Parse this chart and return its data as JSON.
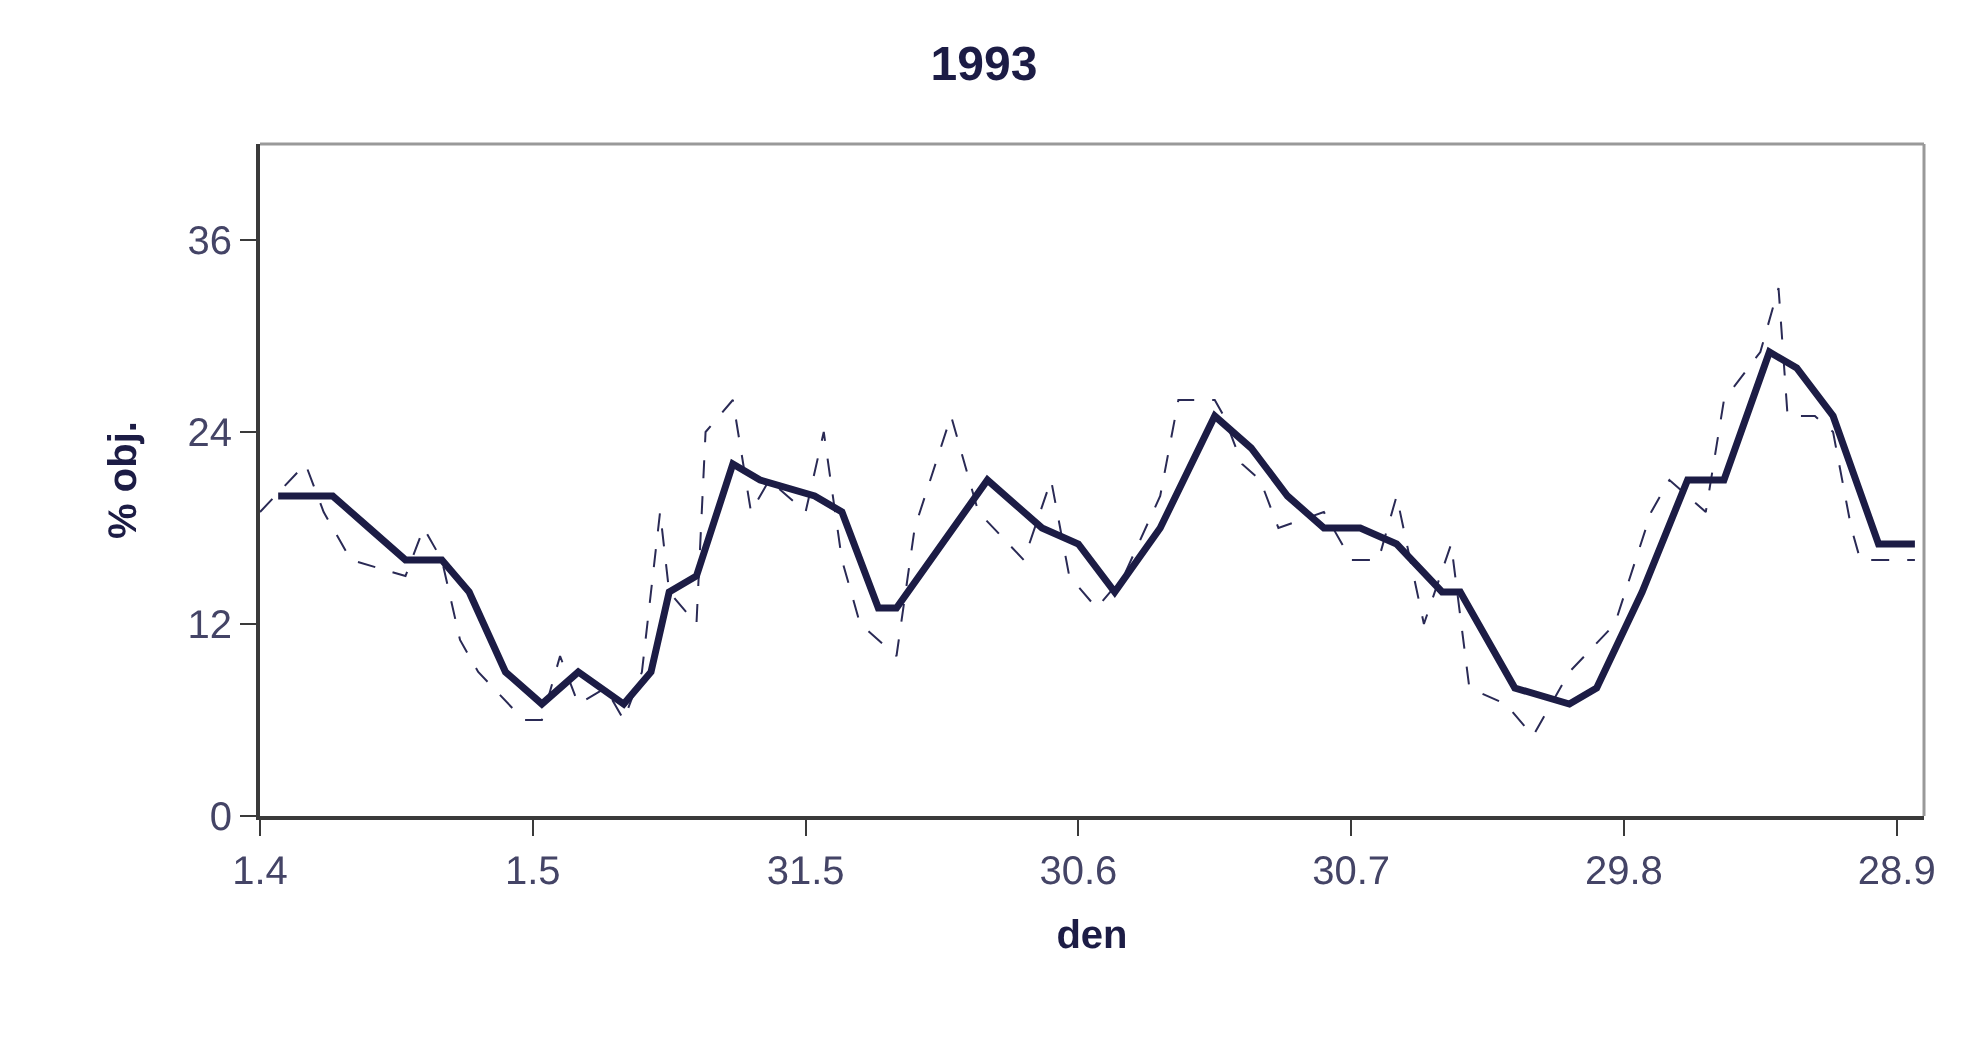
{
  "chart_data": {
    "type": "line",
    "title": "1993",
    "xlabel": "den",
    "ylabel": "% obj.",
    "xlim": [
      "--04-01",
      "--10-01"
    ],
    "xticks": [
      {
        "value": "--04-01",
        "label": "1.4"
      },
      {
        "value": "--05-01",
        "label": "1.5"
      },
      {
        "value": "--05-31",
        "label": "31.5"
      },
      {
        "value": "--06-30",
        "label": "30.6"
      },
      {
        "value": "--07-30",
        "label": "30.7"
      },
      {
        "value": "--08-29",
        "label": "29.8"
      },
      {
        "value": "--09-28",
        "label": "28.9"
      }
    ],
    "ylim": [
      0,
      42
    ],
    "yticks": [
      0,
      12,
      24,
      36
    ],
    "marker": "none",
    "series": [
      {
        "color": "#2a2a55",
        "line_style": "dashed",
        "x": [
          "--04-01",
          "--04-06",
          "--04-08",
          "--04-11",
          "--04-17",
          "--04-19",
          "--04-21",
          "--04-23",
          "--04-25",
          "--04-30",
          "--05-02",
          "--05-04",
          "--05-06",
          "--05-09",
          "--05-11",
          "--05-13",
          "--05-15",
          "--05-16",
          "--05-19",
          "--05-20",
          "--05-23",
          "--05-25",
          "--05-27",
          "--05-31",
          "--06-02",
          "--06-04",
          "--06-06",
          "--06-10",
          "--06-12",
          "--06-16",
          "--06-19",
          "--06-24",
          "--06-27",
          "--06-29",
          "--07-02",
          "--07-05",
          "--07-09",
          "--07-11",
          "--07-15",
          "--07-16",
          "--07-18",
          "--07-20",
          "--07-22",
          "--07-27",
          "--07-30",
          "--08-02",
          "--08-04",
          "--08-07",
          "--08-10",
          "--08-12",
          "--08-16",
          "--08-19",
          "--08-23",
          "--08-28",
          "--09-01",
          "--09-03",
          "--09-07",
          "--09-09",
          "--09-13",
          "--09-15",
          "--09-16",
          "--09-19",
          "--09-21",
          "--09-23",
          "--09-24",
          "--09-27",
          "--09-30"
        ],
        "values": [
          19,
          22,
          19,
          16,
          15,
          18,
          16,
          11,
          9,
          6,
          6,
          10,
          7,
          8,
          6,
          9,
          19,
          14,
          12,
          24,
          26,
          19,
          21,
          19,
          24,
          16,
          12,
          10,
          18,
          25,
          19,
          16,
          21,
          15,
          13,
          15,
          20,
          26,
          26,
          25,
          22,
          21,
          18,
          19,
          16,
          16,
          20,
          12,
          17,
          8,
          7,
          5,
          9,
          12,
          19,
          21,
          19,
          26,
          29,
          33,
          25,
          25,
          24,
          18,
          16,
          16,
          16
        ]
      },
      {
        "color": "#1c1c45",
        "line_style": "solid",
        "x": [
          "--04-03",
          "--04-09",
          "--04-13",
          "--04-17",
          "--04-21",
          "--04-24",
          "--04-28",
          "--05-02",
          "--05-06",
          "--05-11",
          "--05-14",
          "--05-16",
          "--05-19",
          "--05-23",
          "--05-26",
          "--06-01",
          "--06-04",
          "--06-08",
          "--06-10",
          "--06-15",
          "--06-20",
          "--06-26",
          "--06-30",
          "--07-04",
          "--07-09",
          "--07-15",
          "--07-19",
          "--07-23",
          "--07-27",
          "--07-31",
          "--08-04",
          "--08-09",
          "--08-11",
          "--08-17",
          "--08-23",
          "--08-26",
          "--08-31",
          "--09-05",
          "--09-09",
          "--09-14",
          "--09-17",
          "--09-21",
          "--09-26",
          "--09-30"
        ],
        "values": [
          20,
          20,
          18,
          16,
          16,
          14,
          9,
          7,
          9,
          7,
          9,
          14,
          15,
          22,
          21,
          20,
          19,
          13,
          13,
          17,
          21,
          18,
          17,
          14,
          18,
          25,
          23,
          20,
          18,
          18,
          17,
          14,
          14,
          8,
          7,
          8,
          14,
          21,
          21,
          29,
          28,
          25,
          17,
          17
        ]
      }
    ]
  }
}
